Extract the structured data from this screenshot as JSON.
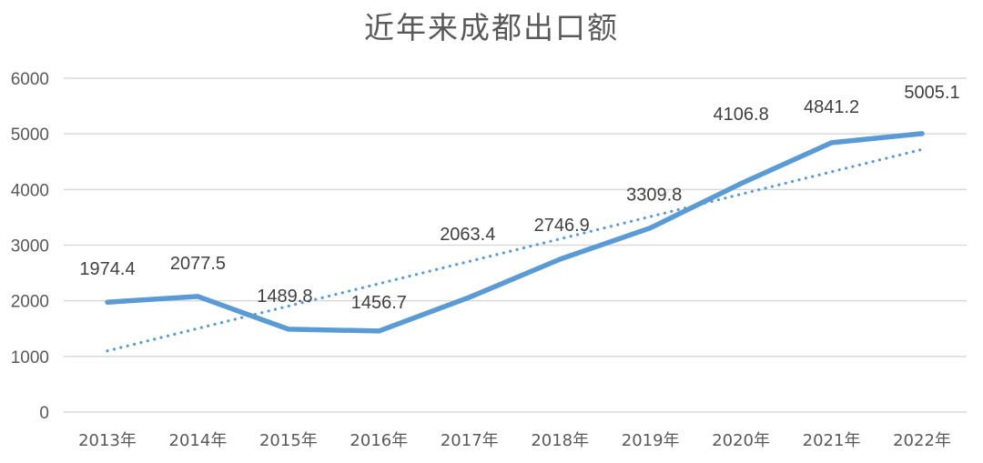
{
  "chart_data": {
    "type": "line",
    "title": "近年来成都出口额",
    "xlabel": "",
    "ylabel": "",
    "categories": [
      "2013年",
      "2014年",
      "2015年",
      "2016年",
      "2017年",
      "2018年",
      "2019年",
      "2020年",
      "2021年",
      "2022年"
    ],
    "series": [
      {
        "name": "出口额",
        "values": [
          1974.4,
          2077.5,
          1489.8,
          1456.7,
          2063.4,
          2746.9,
          3309.8,
          4106.8,
          4841.2,
          5005.1
        ],
        "color": "#5B9BD5",
        "style": "solid"
      },
      {
        "name": "线性趋势线",
        "type": "linear-trendline",
        "values": [
          1100,
          4720
        ],
        "color": "#5B9BD5",
        "style": "dotted"
      }
    ],
    "data_labels": [
      "1974.4",
      "2077.5",
      "1489.8",
      "1456.7",
      "2063.4",
      "2746.9",
      "3309.8",
      "4106.8",
      "4841.2",
      "5005.1"
    ],
    "yticks": [
      "0",
      "1000",
      "2000",
      "3000",
      "4000",
      "5000",
      "6000"
    ],
    "ylim": [
      0,
      6000
    ],
    "grid": true,
    "legend": "none"
  }
}
